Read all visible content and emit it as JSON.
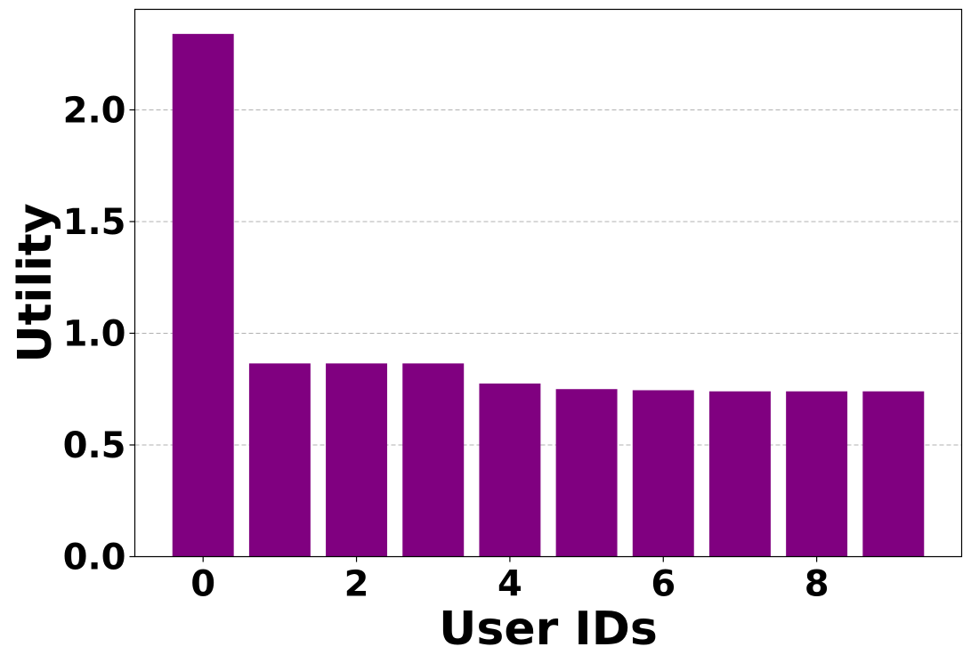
{
  "chart_data": {
    "type": "bar",
    "title": "",
    "xlabel": "User IDs",
    "ylabel": "Utility",
    "categories": [
      0,
      1,
      2,
      3,
      4,
      5,
      6,
      7,
      8,
      9
    ],
    "values": [
      2.34,
      0.865,
      0.865,
      0.865,
      0.775,
      0.75,
      0.745,
      0.74,
      0.74,
      0.74
    ],
    "xlim": [
      -0.89,
      9.89
    ],
    "ylim": [
      0,
      2.45
    ],
    "xticks": [
      "0",
      "2",
      "4",
      "6",
      "8"
    ],
    "yticks": [
      "0.0",
      "0.5",
      "1.0",
      "1.5",
      "2.0"
    ],
    "grid": "horizontal dashed",
    "bar_color": "#800080",
    "grid_color": "#b0b0b0"
  }
}
